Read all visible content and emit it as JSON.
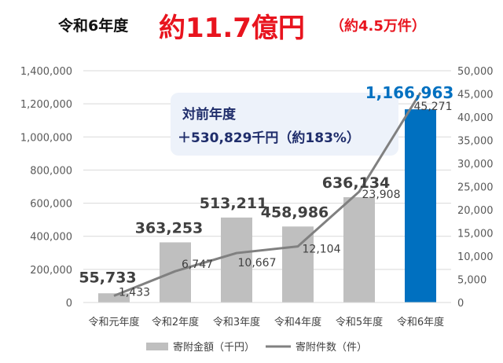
{
  "title": {
    "prefix": "令和6年度",
    "main": "約11.7億円",
    "sub": "（約4.5万件）"
  },
  "callout": {
    "line1": "対前年度",
    "line2": "＋530,829千円（約183%）"
  },
  "colors": {
    "bar": "#bfbfbf",
    "bar_highlight": "#0070c0",
    "line": "#808080",
    "callout_bg": "#edf2fa",
    "title_accent": "#e8141e",
    "highlight_label": "#0070c0"
  },
  "chart_data": {
    "type": "bar",
    "categories": [
      "令和元年度",
      "令和2年度",
      "令和3年度",
      "令和4年度",
      "令和5年度",
      "令和6年度"
    ],
    "series": [
      {
        "name": "寄附金額（千円）",
        "type": "bar",
        "axis": "left",
        "values": [
          55733,
          363253,
          513211,
          458986,
          636134,
          1166963
        ],
        "labels": [
          "55,733",
          "363,253",
          "513,211",
          "458,986",
          "636,134",
          "1,166,963"
        ]
      },
      {
        "name": "寄附件数（件）",
        "type": "line",
        "axis": "right",
        "values": [
          1433,
          6747,
          10667,
          12104,
          23908,
          45271
        ],
        "labels": [
          "1,433",
          "6,747",
          "10,667",
          "12,104",
          "23,908",
          "45,271"
        ]
      }
    ],
    "y_left": {
      "ylim": [
        0,
        1400000
      ],
      "ticks": [
        0,
        200000,
        400000,
        600000,
        800000,
        1000000,
        1200000,
        1400000
      ],
      "tick_labels": [
        "0",
        "200,000",
        "400,000",
        "600,000",
        "800,000",
        "1,000,000",
        "1,200,000",
        "1,400,000"
      ]
    },
    "y_right": {
      "ylim": [
        0,
        50000
      ],
      "ticks": [
        0,
        5000,
        10000,
        15000,
        20000,
        25000,
        30000,
        35000,
        40000,
        45000,
        50000
      ],
      "tick_labels": [
        "0",
        "5,000",
        "10,000",
        "15,000",
        "20,000",
        "25,000",
        "30,000",
        "35,000",
        "40,000",
        "45,000",
        "50,000"
      ]
    },
    "grid": true,
    "legend": "bottom",
    "highlight_index": 5
  }
}
